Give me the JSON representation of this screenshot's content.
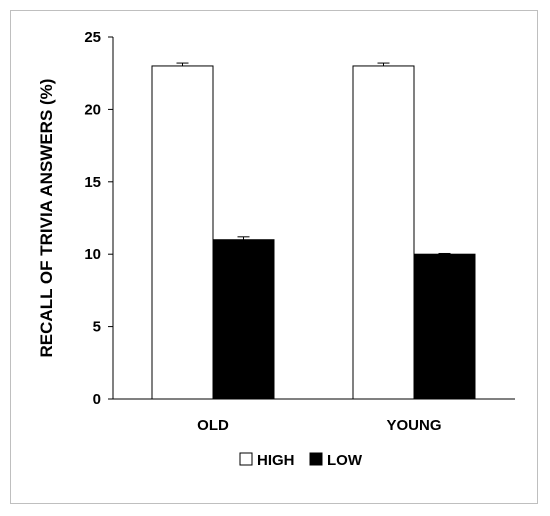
{
  "chart_data": {
    "type": "bar",
    "categories": [
      "OLD",
      "YOUNG"
    ],
    "series": [
      {
        "name": "HIGH",
        "values": [
          23,
          23
        ],
        "errors": [
          0.2,
          0.2
        ],
        "color": "#ffffff"
      },
      {
        "name": "LOW",
        "values": [
          11,
          10
        ],
        "errors": [
          0.2,
          0.05
        ],
        "color": "#000000"
      }
    ],
    "ylabel": "RECALL OF TRIVIA ANSWERS (%)",
    "xlabel": "",
    "title": "",
    "ylim": [
      0,
      25
    ],
    "yticks": [
      "0",
      "5",
      "10",
      "15",
      "20",
      "25"
    ],
    "grid": false,
    "legend": "bottom"
  }
}
